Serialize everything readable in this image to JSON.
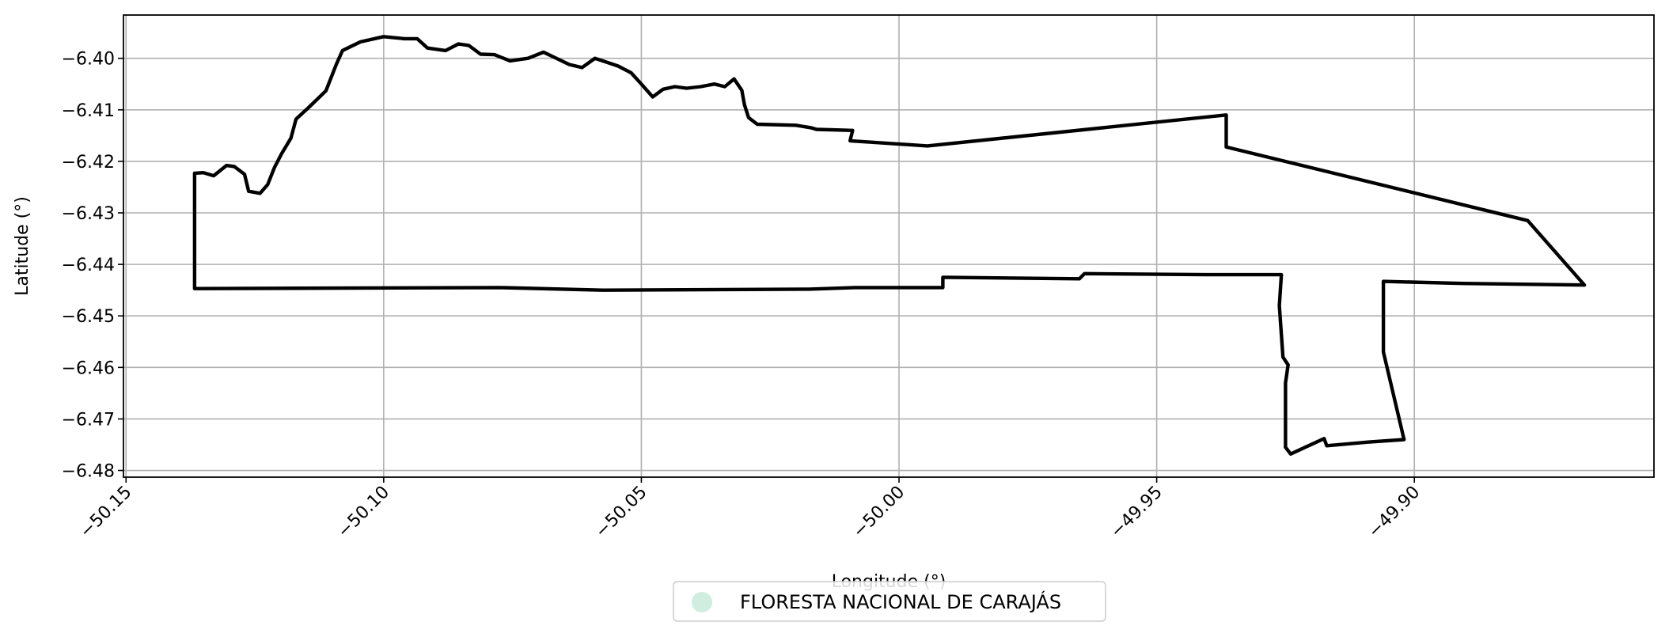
{
  "chart_data": {
    "type": "map",
    "title": "",
    "xlabel": "Longitude (°)",
    "ylabel": "Latitude (°)",
    "xlim": [
      -50.1505,
      -49.8535
    ],
    "ylim": [
      -6.4813,
      -6.3916
    ],
    "grid": true,
    "x_ticks": [
      -50.15,
      -50.1,
      -50.05,
      -50.0,
      -49.95,
      -49.9
    ],
    "x_tick_labels": [
      "−50.15",
      "−50.10",
      "−50.05",
      "−50.00",
      "−49.95",
      "−49.90"
    ],
    "y_ticks": [
      -6.4,
      -6.41,
      -6.42,
      -6.43,
      -6.44,
      -6.45,
      -6.46,
      -6.47,
      -6.48
    ],
    "y_tick_labels": [
      "−6.40",
      "−6.41",
      "−6.42",
      "−6.43",
      "−6.44",
      "−6.45",
      "−6.46",
      "−6.47",
      "−6.48"
    ],
    "legend": {
      "placement": "bottom-center",
      "entries": [
        {
          "label": "FLORESTA NACIONAL DE CARAJÁS",
          "color": "#cfeee0"
        }
      ]
    },
    "boundary_color": "#000000",
    "boundary": [
      [
        -50.1367,
        -6.4447
      ],
      [
        -50.1367,
        -6.4223
      ],
      [
        -50.135,
        -6.4222
      ],
      [
        -50.133,
        -6.4228
      ],
      [
        -50.1305,
        -6.4208
      ],
      [
        -50.129,
        -6.421
      ],
      [
        -50.127,
        -6.4225
      ],
      [
        -50.1262,
        -6.4258
      ],
      [
        -50.124,
        -6.4262
      ],
      [
        -50.1225,
        -6.4245
      ],
      [
        -50.1212,
        -6.4212
      ],
      [
        -50.1198,
        -6.4185
      ],
      [
        -50.118,
        -6.4155
      ],
      [
        -50.117,
        -6.4118
      ],
      [
        -50.1145,
        -6.4095
      ],
      [
        -50.1112,
        -6.4063
      ],
      [
        -50.1092,
        -6.4012
      ],
      [
        -50.108,
        -6.3985
      ],
      [
        -50.1045,
        -6.3968
      ],
      [
        -50.1,
        -6.3958
      ],
      [
        -50.096,
        -6.3962
      ],
      [
        -50.0935,
        -6.3962
      ],
      [
        -50.0915,
        -6.398
      ],
      [
        -50.088,
        -6.3985
      ],
      [
        -50.0855,
        -6.3972
      ],
      [
        -50.0835,
        -6.3975
      ],
      [
        -50.0812,
        -6.3992
      ],
      [
        -50.0785,
        -6.3993
      ],
      [
        -50.0755,
        -6.4005
      ],
      [
        -50.072,
        -6.4
      ],
      [
        -50.069,
        -6.3988
      ],
      [
        -50.0665,
        -6.4
      ],
      [
        -50.064,
        -6.4012
      ],
      [
        -50.0615,
        -6.4018
      ],
      [
        -50.059,
        -6.4
      ],
      [
        -50.0545,
        -6.4015
      ],
      [
        -50.052,
        -6.4028
      ],
      [
        -50.05,
        -6.405
      ],
      [
        -50.0478,
        -6.4075
      ],
      [
        -50.0458,
        -6.406
      ],
      [
        -50.0435,
        -6.4055
      ],
      [
        -50.0412,
        -6.4058
      ],
      [
        -50.0385,
        -6.4055
      ],
      [
        -50.0358,
        -6.405
      ],
      [
        -50.0338,
        -6.4055
      ],
      [
        -50.032,
        -6.404
      ],
      [
        -50.0305,
        -6.4062
      ],
      [
        -50.03,
        -6.409
      ],
      [
        -50.0292,
        -6.4115
      ],
      [
        -50.0275,
        -6.4128
      ],
      [
        -50.02,
        -6.413
      ],
      [
        -50.017,
        -6.4135
      ],
      [
        -50.016,
        -6.4138
      ],
      [
        -50.009,
        -6.414
      ],
      [
        -50.0095,
        -6.416
      ],
      [
        -49.9945,
        -6.417
      ],
      [
        -49.9365,
        -6.411
      ],
      [
        -49.9365,
        -6.4172
      ],
      [
        -49.878,
        -6.4315
      ],
      [
        -49.867,
        -6.444
      ],
      [
        -49.8905,
        -6.4437
      ],
      [
        -49.906,
        -6.4433
      ],
      [
        -49.906,
        -6.457
      ],
      [
        -49.902,
        -6.474
      ],
      [
        -49.909,
        -6.4745
      ],
      [
        -49.917,
        -6.4752
      ],
      [
        -49.9175,
        -6.4738
      ],
      [
        -49.924,
        -6.4768
      ],
      [
        -49.925,
        -6.4755
      ],
      [
        -49.925,
        -6.463
      ],
      [
        -49.9245,
        -6.4595
      ],
      [
        -49.9255,
        -6.458
      ],
      [
        -49.9262,
        -6.448
      ],
      [
        -49.9258,
        -6.442
      ],
      [
        -49.94,
        -6.442
      ],
      [
        -49.964,
        -6.4418
      ],
      [
        -49.965,
        -6.4428
      ],
      [
        -49.9915,
        -6.4425
      ],
      [
        -49.9915,
        -6.4445
      ],
      [
        -50.0085,
        -6.4445
      ],
      [
        -50.0175,
        -6.4448
      ],
      [
        -50.0575,
        -6.445
      ],
      [
        -50.0775,
        -6.4445
      ],
      [
        -50.1367,
        -6.4447
      ]
    ]
  }
}
